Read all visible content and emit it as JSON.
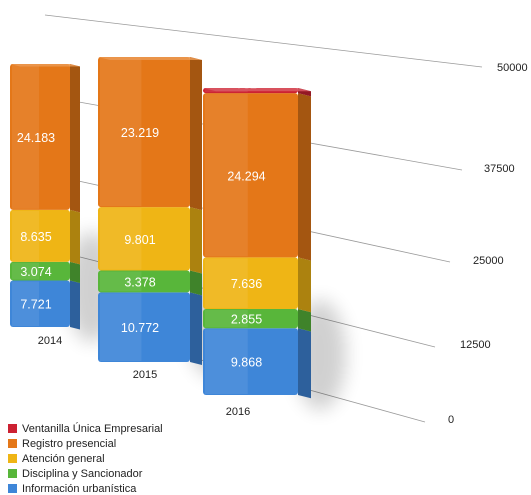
{
  "chart_data": {
    "type": "bar",
    "stacked": true,
    "view": "3d-perspective",
    "categories": [
      "2014",
      "2015",
      "2016"
    ],
    "series": [
      {
        "name": "Información urbanística",
        "color": "#3e86d8",
        "values": [
          7721,
          10772,
          9868
        ],
        "labels": [
          "7.721",
          "10.772",
          "9.868"
        ]
      },
      {
        "name": "Disciplina y Sancionador",
        "color": "#58b63a",
        "values": [
          3074,
          3378,
          2855
        ],
        "labels": [
          "3.074",
          "3.378",
          "2.855"
        ]
      },
      {
        "name": "Atención general",
        "color": "#efb515",
        "values": [
          8635,
          9801,
          7636
        ],
        "labels": [
          "8.635",
          "9.801",
          "7.636"
        ]
      },
      {
        "name": "Registro presencial",
        "color": "#e47718",
        "values": [
          24183,
          23219,
          24294
        ],
        "labels": [
          "24.183",
          "23.219",
          "24.294"
        ]
      },
      {
        "name": "Ventanilla Única Empresarial",
        "color": "#cc2132",
        "values": [
          0,
          0,
          762
        ],
        "labels": [
          "",
          "",
          "762"
        ]
      }
    ],
    "y_ticks": [
      0,
      12500,
      25000,
      37500,
      50000
    ],
    "y_tick_labels": [
      "0",
      "12500",
      "25000",
      "37500",
      "50000"
    ],
    "ylim": [
      0,
      50000
    ],
    "grid": true,
    "legend_position": "bottom-left"
  }
}
